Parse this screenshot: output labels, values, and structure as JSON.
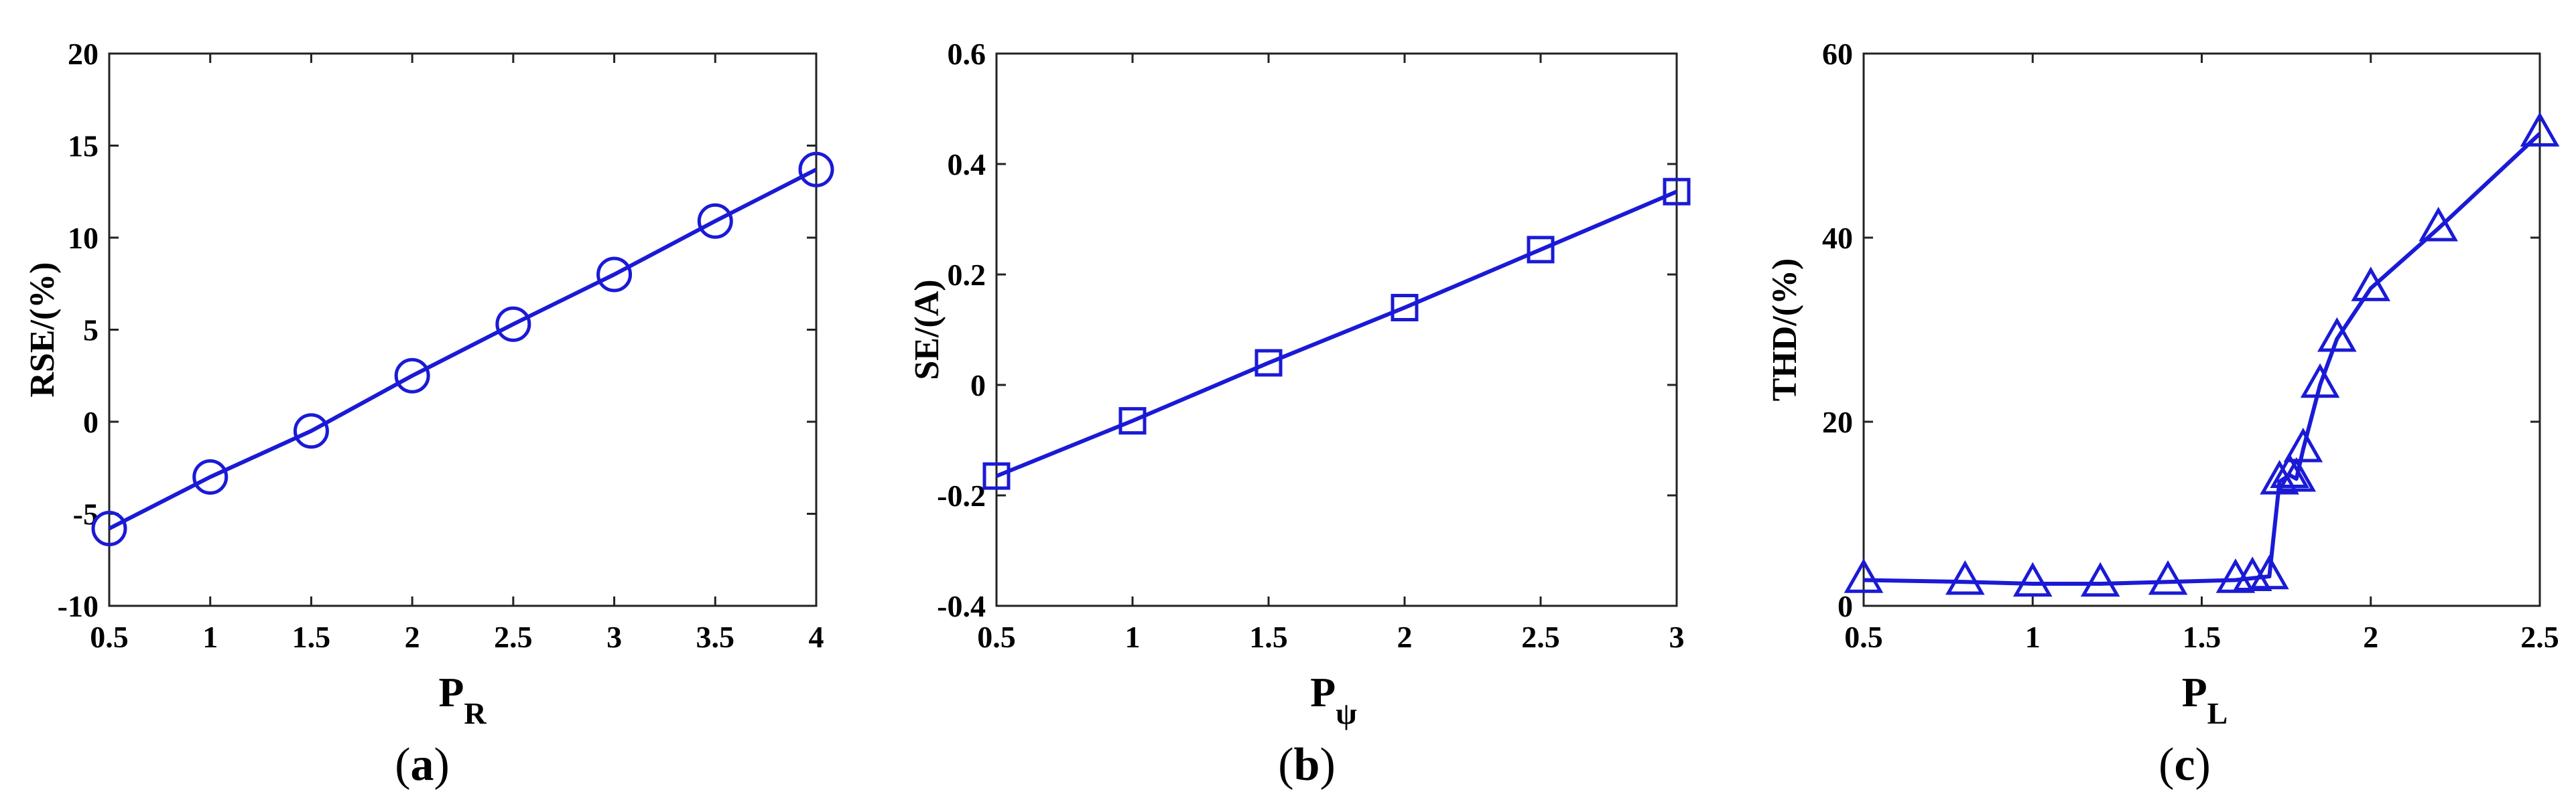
{
  "chart_data": [
    {
      "type": "line",
      "panel_label": "(a)",
      "panel_prefix": "(",
      "panel_letter": "a",
      "panel_suffix": ")",
      "ylabel": "RSE/(%)",
      "xlabel_main": "P",
      "xlabel_sub": "R",
      "xlim": [
        0.5,
        4
      ],
      "ylim": [
        -10,
        20
      ],
      "xticks": [
        0.5,
        1,
        1.5,
        2,
        2.5,
        3,
        3.5,
        4
      ],
      "xtick_labels": [
        "0.5",
        "1",
        "1.5",
        "2",
        "2.5",
        "3",
        "3.5",
        "4"
      ],
      "yticks": [
        -10,
        -5,
        0,
        5,
        10,
        15,
        20
      ],
      "ytick_labels": [
        "-10",
        "-5",
        "0",
        "5",
        "10",
        "15",
        "20"
      ],
      "marker": "circle",
      "color": "#1a1ad6",
      "series": [
        {
          "x": [
            0.5,
            1,
            1.5,
            2,
            2.5,
            3,
            3.5,
            4
          ],
          "y": [
            -5.8,
            -3.0,
            -0.5,
            2.5,
            5.3,
            8.0,
            10.9,
            13.7
          ]
        }
      ]
    },
    {
      "type": "line",
      "panel_label": "(b)",
      "panel_prefix": "(",
      "panel_letter": "b",
      "panel_suffix": ")",
      "ylabel": "SE/(A)",
      "xlabel_main": "P",
      "xlabel_sub": "ψ",
      "xlim": [
        0.5,
        3
      ],
      "ylim": [
        -0.4,
        0.6
      ],
      "xticks": [
        0.5,
        1,
        1.5,
        2,
        2.5,
        3
      ],
      "xtick_labels": [
        "0.5",
        "1",
        "1.5",
        "2",
        "2.5",
        "3"
      ],
      "yticks": [
        -0.4,
        -0.2,
        0,
        0.2,
        0.4,
        0.6
      ],
      "ytick_labels": [
        "-0.4",
        "-0.2",
        "0",
        "0.2",
        "0.4",
        "0.6"
      ],
      "marker": "square",
      "color": "#1a1ad6",
      "series": [
        {
          "x": [
            0.5,
            1,
            1.5,
            2,
            2.5,
            3
          ],
          "y": [
            -0.165,
            -0.065,
            0.04,
            0.14,
            0.245,
            0.35
          ]
        }
      ]
    },
    {
      "type": "line",
      "panel_label": "(c)",
      "panel_prefix": "(",
      "panel_letter": "c",
      "panel_suffix": ")",
      "ylabel": "THD/(%)",
      "xlabel_main": "P",
      "xlabel_sub": "L",
      "xlim": [
        0.5,
        2.5
      ],
      "ylim": [
        0,
        60
      ],
      "xticks": [
        0.5,
        1,
        1.5,
        2,
        2.5
      ],
      "xtick_labels": [
        "0.5",
        "1",
        "1.5",
        "2",
        "2.5"
      ],
      "yticks": [
        0,
        20,
        40,
        60
      ],
      "ytick_labels": [
        "0",
        "20",
        "40",
        "60"
      ],
      "marker": "triangle",
      "color": "#1a1ad6",
      "series": [
        {
          "x": [
            0.5,
            0.8,
            1.0,
            1.2,
            1.4,
            1.6,
            1.65,
            1.7,
            1.73,
            1.76,
            1.78,
            1.8,
            1.85,
            1.9,
            2.0,
            2.2,
            2.5
          ],
          "y": [
            2.8,
            2.6,
            2.4,
            2.4,
            2.6,
            2.8,
            3.0,
            3.2,
            13.5,
            14.2,
            13.8,
            17.0,
            24.0,
            29.0,
            34.5,
            41.0,
            51.3
          ]
        }
      ]
    }
  ]
}
